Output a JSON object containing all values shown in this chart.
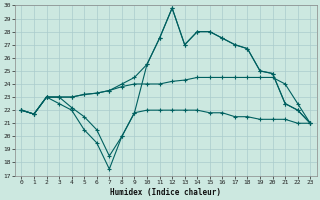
{
  "xlabel": "Humidex (Indice chaleur)",
  "xlim": [
    -0.5,
    23.5
  ],
  "ylim": [
    17,
    30
  ],
  "yticks": [
    17,
    18,
    19,
    20,
    21,
    22,
    23,
    24,
    25,
    26,
    27,
    28,
    29,
    30
  ],
  "xticks": [
    0,
    1,
    2,
    3,
    4,
    5,
    6,
    7,
    8,
    9,
    10,
    11,
    12,
    13,
    14,
    15,
    16,
    17,
    18,
    19,
    20,
    21,
    22,
    23
  ],
  "bg_color": "#cce8e0",
  "grid_color": "#aacccc",
  "line_color": "#006060",
  "line1_y": [
    22.0,
    21.7,
    23.0,
    22.5,
    22.0,
    20.5,
    19.5,
    17.5,
    20.0,
    21.8,
    22.0,
    22.0,
    22.0,
    22.0,
    22.0,
    21.8,
    21.8,
    21.5,
    21.5,
    21.3,
    21.3,
    21.3,
    21.0,
    21.0
  ],
  "line2_y": [
    22.0,
    21.7,
    23.0,
    23.0,
    23.0,
    23.2,
    23.3,
    23.5,
    23.8,
    24.0,
    24.0,
    24.0,
    24.2,
    24.3,
    24.5,
    24.5,
    24.5,
    24.5,
    24.5,
    24.5,
    24.5,
    24.0,
    22.5,
    21.0
  ],
  "line3_y": [
    22.0,
    21.7,
    23.0,
    23.0,
    23.0,
    23.2,
    23.3,
    23.5,
    24.0,
    24.5,
    25.5,
    27.5,
    29.8,
    27.0,
    28.0,
    28.0,
    27.5,
    27.0,
    26.7,
    25.0,
    24.8,
    22.5,
    22.0,
    21.0
  ],
  "line4_y": [
    22.0,
    21.7,
    23.0,
    23.0,
    22.2,
    21.5,
    20.5,
    18.5,
    20.0,
    21.8,
    25.5,
    27.5,
    29.8,
    27.0,
    28.0,
    28.0,
    27.5,
    27.0,
    26.7,
    25.0,
    24.8,
    22.5,
    22.0,
    21.0
  ]
}
